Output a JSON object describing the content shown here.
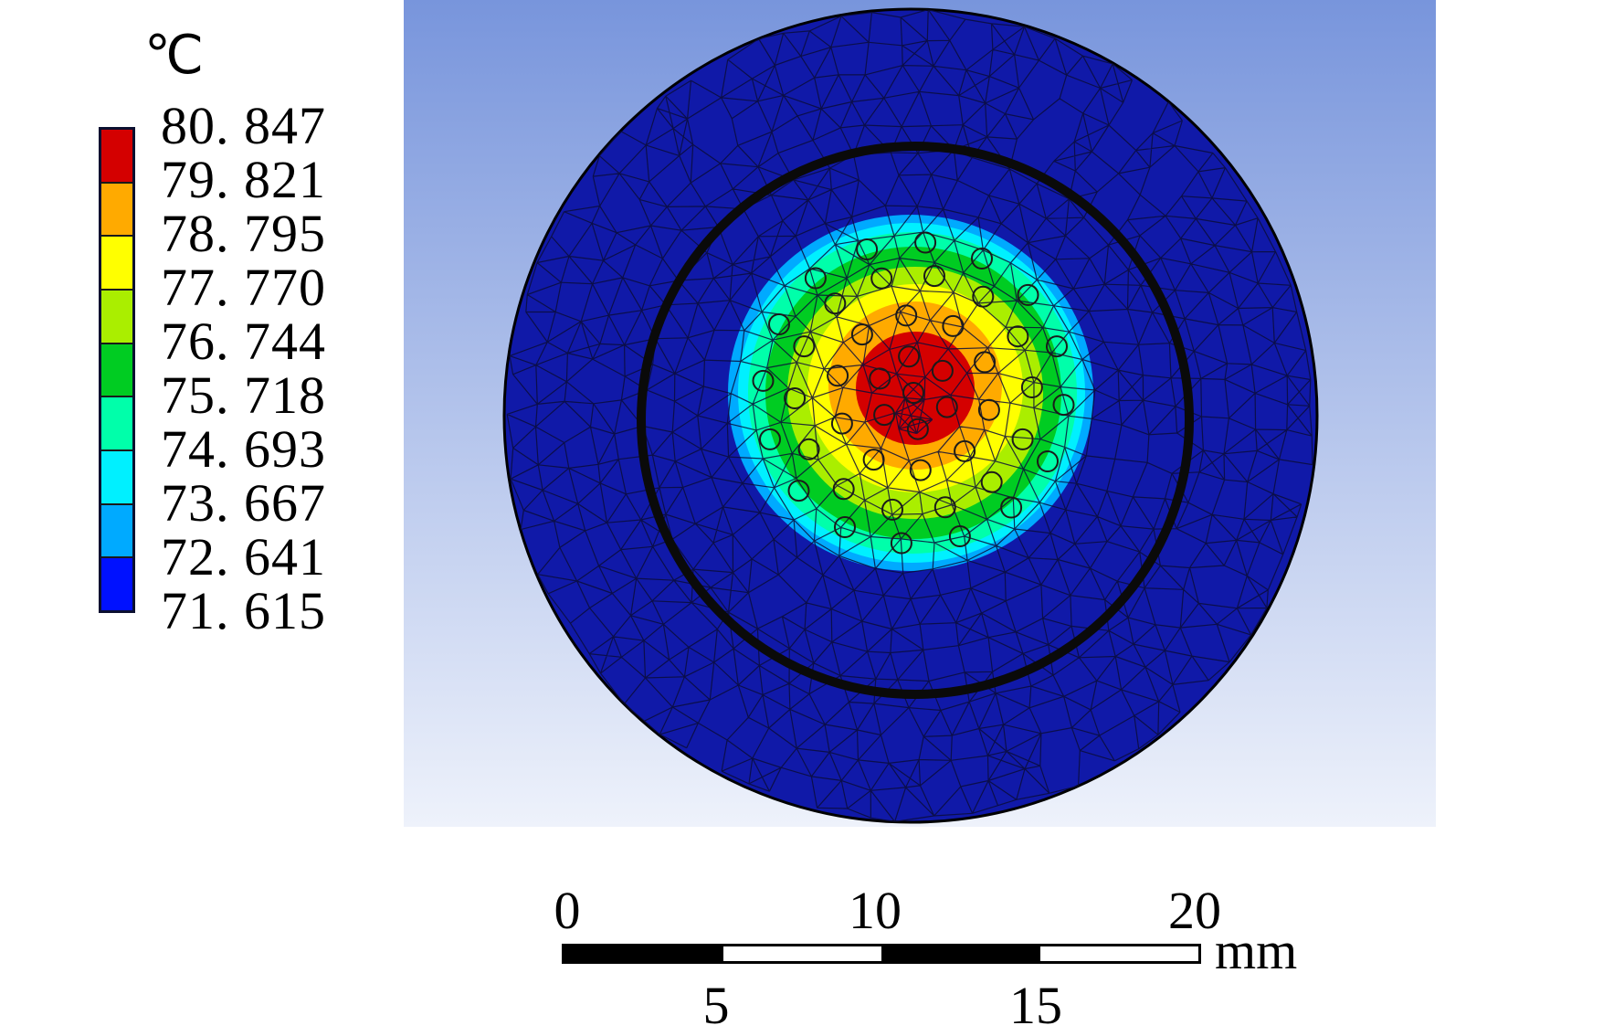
{
  "legend": {
    "unit": "℃",
    "values": [
      "80. 847",
      "79. 821",
      "78. 795",
      "77. 770",
      "76. 744",
      "75. 718",
      "74. 693",
      "73. 667",
      "72. 641",
      "71. 615"
    ],
    "colors": [
      "#d40000",
      "#ffaa00",
      "#ffff00",
      "#aaee00",
      "#00cc22",
      "#00ffaa",
      "#00f0ff",
      "#00aaff",
      "#0011ff"
    ]
  },
  "colors": {
    "background_top": "#7895dc",
    "background_bottom": "#eef2fb",
    "disk": "#1019a8",
    "ring": "#0a0a0a",
    "mesh": "#0a0d3a"
  },
  "scale": {
    "top_labels": [
      "0",
      "10",
      "20"
    ],
    "bottom_labels": [
      "5",
      "15"
    ],
    "unit": "mm"
  }
}
